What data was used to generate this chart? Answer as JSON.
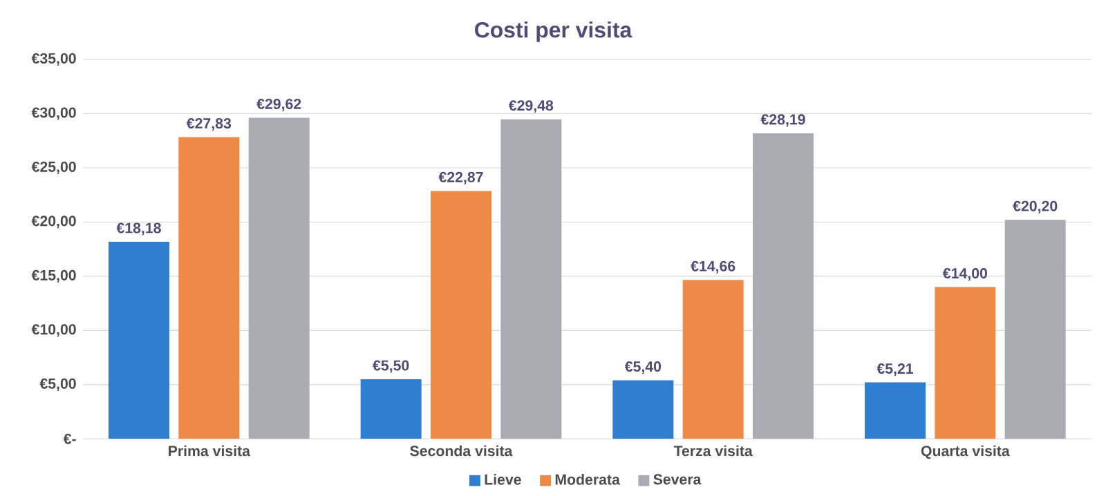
{
  "chart_data": {
    "type": "bar",
    "title": "Costi per visita",
    "categories": [
      "Prima visita",
      "Seconda visita",
      "Terza visita",
      "Quarta visita"
    ],
    "series": [
      {
        "name": "Lieve",
        "color": "#2e7fd0",
        "values": [
          18.18,
          5.5,
          5.4,
          5.21
        ],
        "value_labels": [
          "€18,18",
          "€5,50",
          "€5,40",
          "€5,21"
        ]
      },
      {
        "name": "Moderata",
        "color": "#ee8a45",
        "values": [
          27.83,
          22.87,
          14.66,
          14.0
        ],
        "value_labels": [
          "€27,83",
          "€22,87",
          "€14,66",
          "€14,00"
        ]
      },
      {
        "name": "Severa",
        "color": "#a9acb2",
        "values": [
          29.62,
          29.48,
          28.19,
          20.2
        ],
        "value_labels": [
          "€29,62",
          "€29,48",
          "€28,19",
          "€20,20"
        ]
      }
    ],
    "ylim": [
      0,
      35
    ],
    "yticks": [
      {
        "value": 0,
        "label": "€-"
      },
      {
        "value": 5,
        "label": "€5,00"
      },
      {
        "value": 10,
        "label": "€10,00"
      },
      {
        "value": 15,
        "label": "€15,00"
      },
      {
        "value": 20,
        "label": "€20,00"
      },
      {
        "value": 25,
        "label": "€25,00"
      },
      {
        "value": 30,
        "label": "€30,00"
      },
      {
        "value": 35,
        "label": "€35,00"
      }
    ],
    "grid": "y",
    "legend": "bottom"
  }
}
